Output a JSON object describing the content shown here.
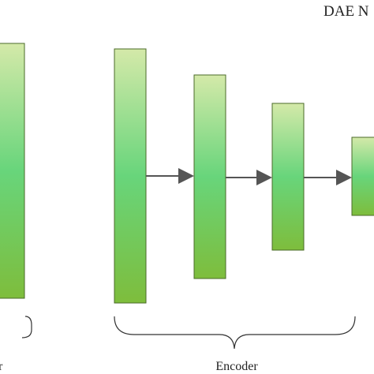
{
  "title": "DAE N",
  "labels": {
    "left": "r",
    "encoder": "Encoder"
  }
}
